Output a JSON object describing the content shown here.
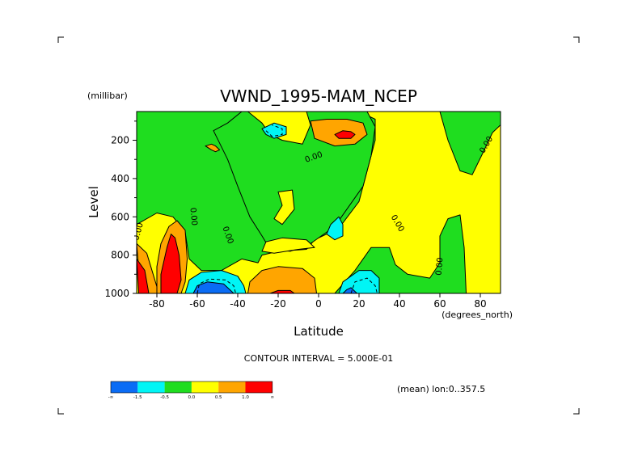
{
  "chart_data": {
    "type": "heatmap",
    "subtype": "filled-contour",
    "title": "VWND_1995-MAM_NCEP",
    "xlabel": "Latitude",
    "xunits": "(degrees_north)",
    "ylabel": "Level",
    "yunits": "(millibar)",
    "xlim": [
      -90,
      90
    ],
    "ylim": [
      1000,
      50
    ],
    "y_inverted": true,
    "x_ticks": [
      {
        "value": -80,
        "label": "-80"
      },
      {
        "value": -60,
        "label": "-60"
      },
      {
        "value": -40,
        "label": "-40"
      },
      {
        "value": -20,
        "label": "-20"
      },
      {
        "value": 0,
        "label": "0"
      },
      {
        "value": 20,
        "label": "20"
      },
      {
        "value": 40,
        "label": "40"
      },
      {
        "value": 60,
        "label": "60"
      },
      {
        "value": 80,
        "label": "80"
      }
    ],
    "y_ticks": [
      {
        "value": 200,
        "label": "200"
      },
      {
        "value": 400,
        "label": "400"
      },
      {
        "value": 600,
        "label": "600"
      },
      {
        "value": 800,
        "label": "800"
      },
      {
        "value": 1000,
        "label": "1000"
      }
    ],
    "contour_interval_text": "CONTOUR INTERVAL = 5.000E-01",
    "footer_text": "(mean) lon:0..357.5",
    "contour_labels": [
      {
        "text": "0.00",
        "x": -2,
        "p": 300,
        "angle": -20
      },
      {
        "text": "0.00",
        "x": 84,
        "p": 230,
        "angle": -60
      },
      {
        "text": "0.00",
        "x": 38,
        "p": 640,
        "angle": 60
      },
      {
        "text": "0.00",
        "x": 61,
        "p": 860,
        "angle": -85
      },
      {
        "text": "0.00",
        "x": -46,
        "p": 700,
        "angle": 70
      },
      {
        "text": "0.00",
        "x": -63,
        "p": 600,
        "angle": 85
      },
      {
        "text": "0.00",
        "x": -88,
        "p": 680,
        "angle": -75
      }
    ],
    "colorbar": {
      "colors": [
        "#0a6cf5",
        "#00f5f5",
        "#1fdd1f",
        "#ffff00",
        "#ffa500",
        "#ff0000"
      ],
      "labels": [
        "-∞",
        "-1.5",
        "-0.5",
        "0.0",
        "0.5",
        "1.0",
        "∞"
      ]
    },
    "levels": {
      "negative": "#0a6cf5",
      "slightly_negative": "#00f5f5",
      "near_zero_negative": "#1fdd1f",
      "near_zero_positive": "#ffff00",
      "positive": "#ffa500",
      "strong_positive": "#ff0000"
    },
    "regions": [
      {
        "level": "near_zero_positive",
        "pts": [
          [
            -90,
            1000
          ],
          [
            -90,
            50
          ],
          [
            90,
            50
          ],
          [
            90,
            1000
          ]
        ]
      },
      {
        "level": "near_zero_negative",
        "pts": [
          [
            -90,
            50
          ],
          [
            -90,
            640
          ],
          [
            -80,
            580
          ],
          [
            -72,
            600
          ],
          [
            -66,
            680
          ],
          [
            -64,
            820
          ],
          [
            -58,
            880
          ],
          [
            -48,
            880
          ],
          [
            -38,
            820
          ],
          [
            -30,
            840
          ],
          [
            -28,
            800
          ],
          [
            -20,
            780
          ],
          [
            -6,
            770
          ],
          [
            -2,
            720
          ],
          [
            10,
            660
          ],
          [
            20,
            520
          ],
          [
            24,
            360
          ],
          [
            28,
            200
          ],
          [
            28,
            90
          ],
          [
            20,
            50
          ]
        ]
      },
      {
        "level": "near_zero_negative",
        "pts": [
          [
            -38,
            50
          ],
          [
            -45,
            110
          ],
          [
            -52,
            150
          ],
          [
            -45,
            300
          ],
          [
            -40,
            440
          ],
          [
            -34,
            600
          ],
          [
            -28,
            700
          ],
          [
            -24,
            770
          ],
          [
            -14,
            780
          ],
          [
            -4,
            740
          ],
          [
            8,
            650
          ],
          [
            22,
            440
          ],
          [
            26,
            280
          ],
          [
            28,
            130
          ],
          [
            24,
            50
          ]
        ]
      },
      {
        "level": "near_zero_positive",
        "pts": [
          [
            -35,
            50
          ],
          [
            -28,
            110
          ],
          [
            -24,
            170
          ],
          [
            -18,
            200
          ],
          [
            -8,
            220
          ],
          [
            -4,
            120
          ],
          [
            -6,
            50
          ]
        ]
      },
      {
        "level": "near_zero_positive",
        "pts": [
          [
            -20,
            470
          ],
          [
            -18,
            540
          ],
          [
            -22,
            610
          ],
          [
            -18,
            640
          ],
          [
            -12,
            560
          ],
          [
            -13,
            460
          ]
        ]
      },
      {
        "level": "near_zero_positive",
        "pts": [
          [
            -28,
            780
          ],
          [
            -22,
            790
          ],
          [
            -10,
            770
          ],
          [
            -2,
            760
          ],
          [
            -6,
            720
          ],
          [
            -18,
            710
          ],
          [
            -26,
            730
          ]
        ]
      },
      {
        "level": "near_zero_negative",
        "pts": [
          [
            8,
            1000
          ],
          [
            18,
            880
          ],
          [
            24,
            790
          ],
          [
            26,
            760
          ],
          [
            35,
            760
          ],
          [
            38,
            850
          ],
          [
            44,
            900
          ],
          [
            55,
            920
          ],
          [
            60,
            840
          ],
          [
            60,
            700
          ],
          [
            64,
            610
          ],
          [
            70,
            590
          ],
          [
            72,
            760
          ],
          [
            73,
            1000
          ]
        ]
      },
      {
        "level": "near_zero_negative",
        "pts": [
          [
            60,
            50
          ],
          [
            64,
            200
          ],
          [
            70,
            360
          ],
          [
            76,
            380
          ],
          [
            82,
            250
          ],
          [
            86,
            160
          ],
          [
            90,
            120
          ],
          [
            90,
            50
          ]
        ]
      },
      {
        "level": "slightly_negative",
        "pts": [
          [
            6,
            640
          ],
          [
            4,
            690
          ],
          [
            8,
            720
          ],
          [
            12,
            700
          ],
          [
            12,
            640
          ],
          [
            10,
            600
          ]
        ]
      },
      {
        "level": "slightly_negative",
        "pts": [
          [
            -28,
            140
          ],
          [
            -26,
            170
          ],
          [
            -22,
            190
          ],
          [
            -16,
            170
          ],
          [
            -16,
            130
          ],
          [
            -22,
            110
          ]
        ]
      },
      {
        "level": "positive",
        "pts": [
          [
            -56,
            230
          ],
          [
            -53,
            250
          ],
          [
            -51,
            260
          ],
          [
            -49,
            250
          ],
          [
            -51,
            230
          ],
          [
            -53,
            220
          ]
        ]
      },
      {
        "level": "slightly_negative",
        "pts": [
          [
            -66,
            1000
          ],
          [
            -64,
            930
          ],
          [
            -58,
            890
          ],
          [
            -48,
            880
          ],
          [
            -40,
            910
          ],
          [
            -37,
            960
          ],
          [
            -36,
            1000
          ]
        ]
      },
      {
        "level": "negative",
        "pts": [
          [
            -62,
            1000
          ],
          [
            -60,
            960
          ],
          [
            -55,
            940
          ],
          [
            -47,
            950
          ],
          [
            -44,
            980
          ],
          [
            -42,
            1000
          ]
        ]
      },
      {
        "level": "slightly_negative",
        "pts": [
          [
            10,
            1000
          ],
          [
            12,
            940
          ],
          [
            20,
            880
          ],
          [
            26,
            880
          ],
          [
            30,
            920
          ],
          [
            30,
            1000
          ]
        ]
      },
      {
        "level": "negative",
        "pts": [
          [
            12,
            1000
          ],
          [
            14,
            980
          ],
          [
            16,
            970
          ],
          [
            18,
            990
          ],
          [
            19,
            1000
          ]
        ]
      },
      {
        "level": "positive",
        "pts": [
          [
            -35,
            1000
          ],
          [
            -34,
            940
          ],
          [
            -28,
            880
          ],
          [
            -20,
            860
          ],
          [
            -8,
            870
          ],
          [
            -2,
            920
          ],
          [
            -1,
            1000
          ]
        ]
      },
      {
        "level": "strong_positive",
        "pts": [
          [
            -24,
            1000
          ],
          [
            -20,
            985
          ],
          [
            -14,
            985
          ],
          [
            -12,
            1000
          ]
        ]
      },
      {
        "level": "positive",
        "pts": [
          [
            -4,
            100
          ],
          [
            -2,
            190
          ],
          [
            8,
            230
          ],
          [
            18,
            220
          ],
          [
            24,
            170
          ],
          [
            22,
            110
          ],
          [
            14,
            90
          ],
          [
            4,
            90
          ]
        ]
      },
      {
        "level": "strong_positive",
        "pts": [
          [
            8,
            170
          ],
          [
            10,
            190
          ],
          [
            16,
            190
          ],
          [
            18,
            170
          ],
          [
            16,
            155
          ],
          [
            12,
            150
          ]
        ]
      },
      {
        "level": "positive",
        "pts": [
          [
            -90,
            740
          ],
          [
            -88,
            1000
          ],
          [
            -79,
            1000
          ],
          [
            -83,
            860
          ],
          [
            -85,
            790
          ]
        ]
      },
      {
        "level": "strong_positive",
        "pts": [
          [
            -90,
            820
          ],
          [
            -89,
            1000
          ],
          [
            -84,
            1000
          ],
          [
            -86,
            880
          ]
        ]
      },
      {
        "level": "positive",
        "pts": [
          [
            -80,
            1000
          ],
          [
            -80,
            860
          ],
          [
            -78,
            740
          ],
          [
            -74,
            650
          ],
          [
            -70,
            620
          ],
          [
            -66,
            670
          ],
          [
            -65,
            820
          ],
          [
            -66,
            940
          ],
          [
            -68,
            1000
          ]
        ]
      },
      {
        "level": "strong_positive",
        "pts": [
          [
            -78,
            1000
          ],
          [
            -78,
            900
          ],
          [
            -75,
            760
          ],
          [
            -73,
            690
          ],
          [
            -71,
            710
          ],
          [
            -69,
            800
          ],
          [
            -68,
            930
          ],
          [
            -70,
            1000
          ]
        ]
      }
    ],
    "dashed_contours": [
      [
        [
          -60,
          1000
        ],
        [
          -59,
          950
        ],
        [
          -54,
          925
        ],
        [
          -46,
          930
        ],
        [
          -42,
          960
        ],
        [
          -41,
          1000
        ]
      ],
      [
        [
          -26,
          150
        ],
        [
          -23,
          180
        ],
        [
          -18,
          170
        ],
        [
          -18,
          140
        ],
        [
          -23,
          120
        ]
      ],
      [
        [
          16,
          1000
        ],
        [
          18,
          940
        ],
        [
          24,
          920
        ],
        [
          28,
          960
        ],
        [
          29,
          1000
        ]
      ]
    ]
  }
}
